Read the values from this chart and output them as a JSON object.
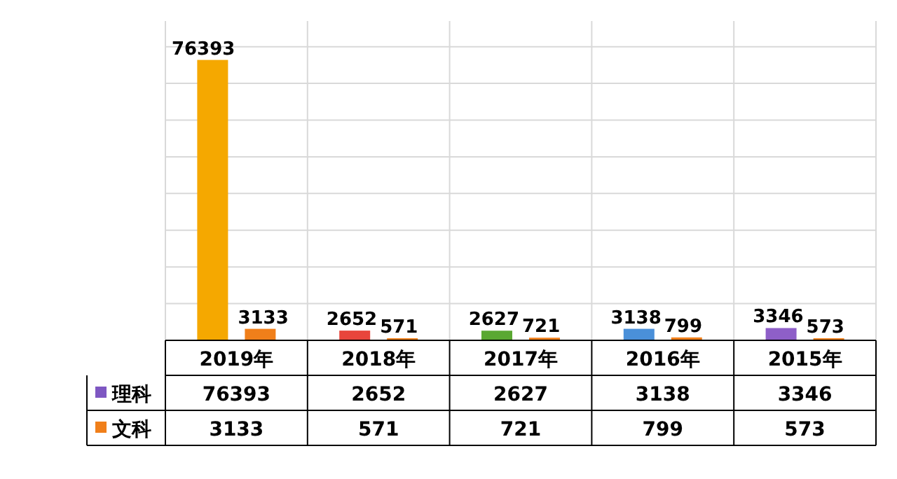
{
  "chart_data": {
    "type": "bar",
    "categories": [
      "2019年",
      "2018年",
      "2017年",
      "2016年",
      "2015年"
    ],
    "series": [
      {
        "name": "理科",
        "color": "#7e57c2",
        "colors": [
          "#f5a800",
          "#e8453c",
          "#5aa832",
          "#4a90d9",
          "#8e5fc8"
        ],
        "values": [
          76393,
          2652,
          2627,
          3138,
          3346
        ],
        "value_labels": [
          "76393",
          "2652",
          "2627",
          "3138",
          "3346"
        ]
      },
      {
        "name": "文科",
        "color": "#f07f1a",
        "values": [
          3133,
          571,
          721,
          799,
          573
        ],
        "value_labels": [
          "3133",
          "571",
          "721",
          "799",
          "573"
        ]
      }
    ],
    "ylim": [
      0,
      87000
    ],
    "yticks": [
      {
        "value": 0,
        "label": null
      },
      {
        "value": 10000,
        "label": null
      },
      {
        "value": 20000,
        "label": null
      },
      {
        "value": 30000,
        "label": null
      },
      {
        "value": 40000,
        "label": null
      },
      {
        "value": 50000,
        "label": null
      },
      {
        "value": 60000,
        "label": null
      },
      {
        "value": 70000,
        "label": null
      },
      {
        "value": 80000,
        "label": null
      }
    ],
    "annotations": [
      "76393",
      "2652",
      "2627",
      "3138",
      "3346",
      "3133",
      "571",
      "721",
      "799",
      "573"
    ],
    "grid": true,
    "data_labels": true,
    "legend": "bottom left"
  }
}
